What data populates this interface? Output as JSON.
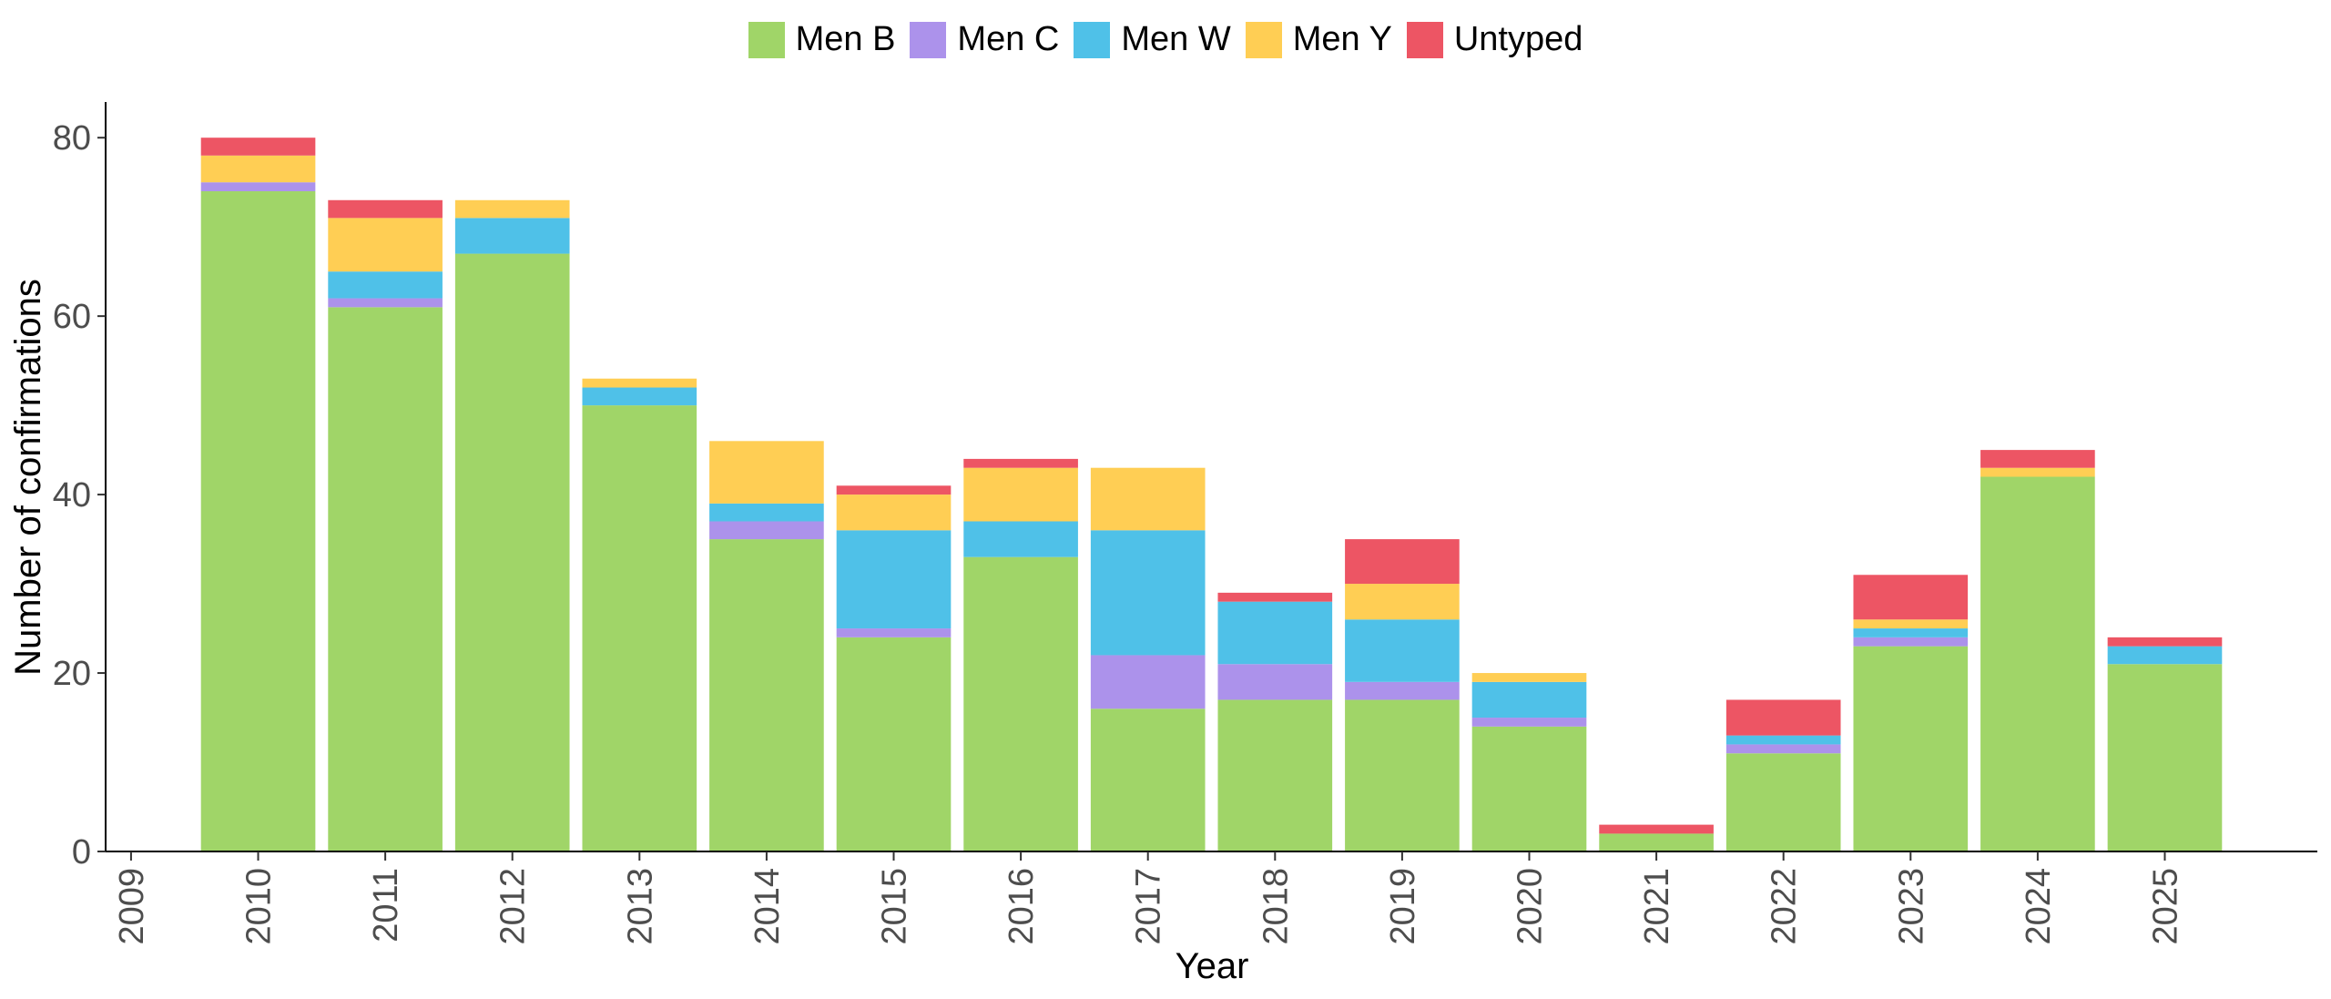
{
  "chart_data": {
    "type": "bar",
    "stacked": true,
    "xlabel": "Year",
    "ylabel": "Number of confirmations",
    "ylim": [
      0,
      84
    ],
    "yticks": [
      0,
      20,
      40,
      60,
      80
    ],
    "xticks": [
      "2009",
      "2010",
      "2011",
      "2012",
      "2013",
      "2014",
      "2015",
      "2016",
      "2017",
      "2018",
      "2019",
      "2020",
      "2021",
      "2022",
      "2023",
      "2024",
      "2025"
    ],
    "xlim": [
      2008.8,
      2026.2
    ],
    "categories": [
      2010,
      2011,
      2012,
      2013,
      2014,
      2015,
      2016,
      2017,
      2018,
      2019,
      2020,
      2021,
      2022,
      2023,
      2024,
      2025
    ],
    "legend_position": "top",
    "grid": false,
    "series": [
      {
        "name": "Men B",
        "color": "#A0D568",
        "values": [
          74,
          61,
          67,
          50,
          35,
          24,
          33,
          16,
          17,
          17,
          14,
          2,
          11,
          23,
          42,
          21
        ]
      },
      {
        "name": "Men C",
        "color": "#AC92EB",
        "values": [
          1,
          1,
          0,
          0,
          2,
          1,
          0,
          6,
          4,
          2,
          1,
          0,
          1,
          1,
          0,
          0
        ]
      },
      {
        "name": "Men W",
        "color": "#4FC1E8",
        "values": [
          0,
          3,
          4,
          2,
          2,
          11,
          4,
          14,
          7,
          7,
          4,
          0,
          1,
          1,
          0,
          2
        ]
      },
      {
        "name": "Men Y",
        "color": "#FFCE54",
        "values": [
          3,
          6,
          2,
          1,
          7,
          4,
          6,
          7,
          0,
          4,
          1,
          0,
          0,
          1,
          1,
          0
        ]
      },
      {
        "name": "Untyped",
        "color": "#ED5564",
        "values": [
          2,
          2,
          0,
          0,
          0,
          1,
          1,
          0,
          1,
          5,
          0,
          1,
          4,
          5,
          2,
          1
        ]
      }
    ]
  }
}
